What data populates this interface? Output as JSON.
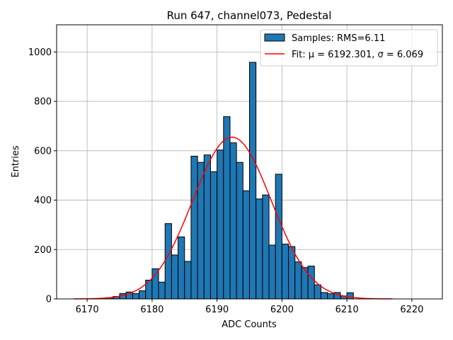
{
  "chart_data": {
    "type": "histogram",
    "title": "Run 647, channel073, Pedestal",
    "xlabel": "ADC Counts",
    "ylabel": "Entries",
    "xlim": [
      6165.3,
      6224.7
    ],
    "ylim": [
      0,
      1110
    ],
    "xticks": [
      6170,
      6180,
      6190,
      6200,
      6210,
      6220
    ],
    "yticks": [
      0,
      200,
      400,
      600,
      800,
      1000
    ],
    "grid": true,
    "legend_position": "top-right",
    "colors": {
      "bars": "#1f77b4",
      "bar_edge": "#000000",
      "fit": "#ff0000"
    },
    "series": [
      {
        "name": "Samples: RMS=6.11",
        "type": "bar",
        "bin_width": 1,
        "bin_left_edges": [
          6173,
          6174,
          6175,
          6176,
          6177,
          6178,
          6179,
          6180,
          6181,
          6182,
          6183,
          6184,
          6185,
          6186,
          6187,
          6188,
          6189,
          6190,
          6191,
          6192,
          6193,
          6194,
          6195,
          6196,
          6197,
          6198,
          6199,
          6200,
          6201,
          6202,
          6203,
          6204,
          6205,
          6206,
          6207,
          6208,
          6209,
          6210
        ],
        "values": [
          5,
          10,
          22,
          28,
          22,
          33,
          76,
          122,
          68,
          305,
          178,
          251,
          152,
          578,
          553,
          583,
          515,
          603,
          738,
          632,
          553,
          438,
          958,
          405,
          421,
          218,
          505,
          222,
          212,
          150,
          127,
          133,
          57,
          26,
          21,
          26,
          12,
          25
        ]
      },
      {
        "name": "Fit: μ = 6192.301, σ = 6.069",
        "type": "line",
        "function": "gaussian",
        "mu": 6192.301,
        "sigma": 6.069,
        "amplitude": 655,
        "x_range": [
          6168,
          6217
        ]
      }
    ]
  }
}
